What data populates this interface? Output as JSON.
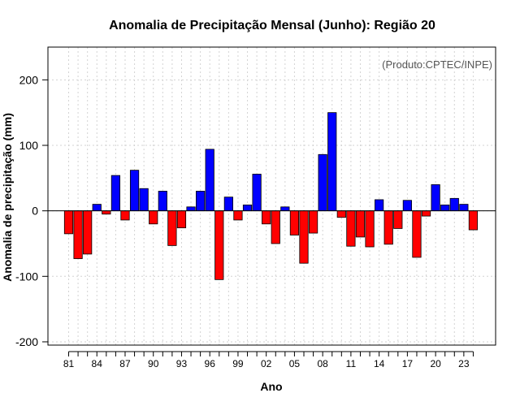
{
  "chart_data": {
    "type": "bar",
    "title": "Anomalia de Precipitação Mensal (Junho): Região 20",
    "source": "(Produto:CPTEC/INPE)",
    "xlabel": "Ano",
    "ylabel": "Anomalia de precipitação (mm)",
    "ylim": [
      -205,
      250
    ],
    "yticks": [
      -200,
      -100,
      0,
      100,
      200
    ],
    "years": [
      "81",
      "82",
      "83",
      "84",
      "85",
      "86",
      "87",
      "88",
      "89",
      "90",
      "91",
      "92",
      "93",
      "94",
      "95",
      "96",
      "97",
      "98",
      "99",
      "00",
      "01",
      "02",
      "03",
      "04",
      "05",
      "06",
      "07",
      "08",
      "09",
      "10",
      "11",
      "12",
      "13",
      "14",
      "15",
      "16",
      "17",
      "18",
      "19",
      "20",
      "21",
      "22",
      "23",
      "24"
    ],
    "xtick_labels": [
      "81",
      "84",
      "87",
      "90",
      "93",
      "96",
      "99",
      "02",
      "05",
      "08",
      "11",
      "14",
      "17",
      "20",
      "23"
    ],
    "values": [
      -35,
      -73,
      -66,
      10,
      -5,
      54,
      -14,
      62,
      34,
      -20,
      30,
      -53,
      -26,
      6,
      30,
      94,
      -105,
      21,
      -14,
      9,
      56,
      -20,
      -50,
      6,
      -37,
      -80,
      -34,
      86,
      150,
      -10,
      -54,
      -40,
      -55,
      17,
      -51,
      -27,
      16,
      -71,
      -8,
      40,
      9,
      19,
      10,
      -29
    ],
    "colors": {
      "positive": "#0000ff",
      "negative": "#ff0000",
      "grid": "#d3d3d3",
      "axis": "#000000"
    }
  }
}
